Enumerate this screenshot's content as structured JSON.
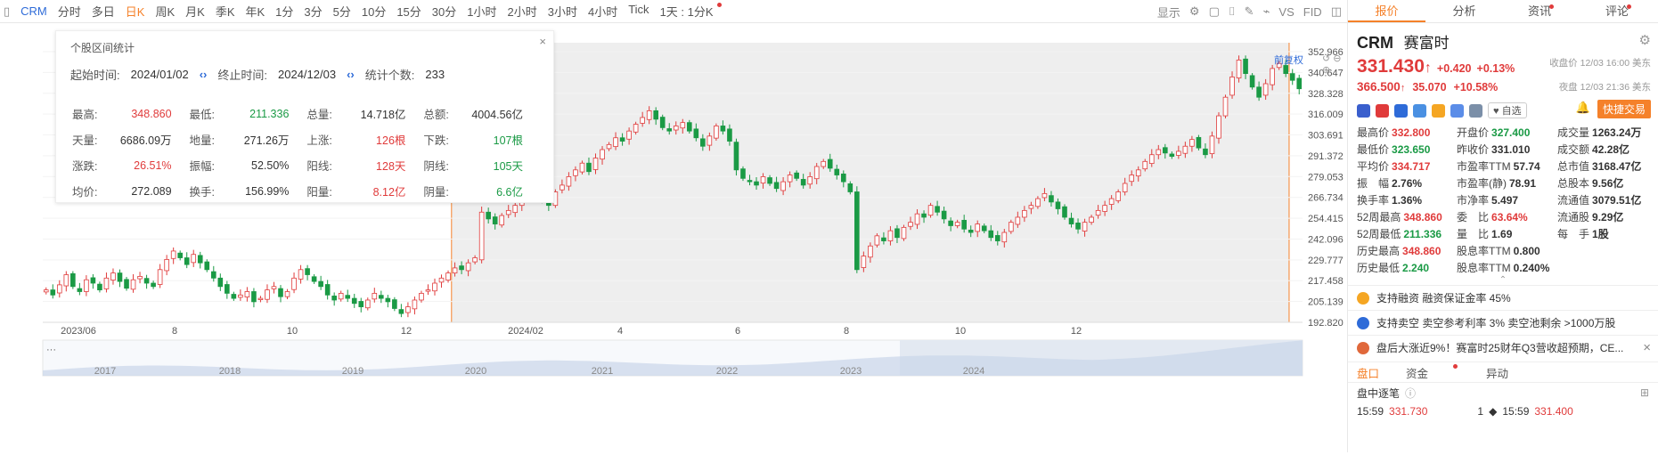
{
  "toolbar": {
    "symbol": "CRM",
    "periods": [
      "分时",
      "多日",
      "日K",
      "周K",
      "月K",
      "季K",
      "年K",
      "1分",
      "3分",
      "5分",
      "10分",
      "15分",
      "30分",
      "1小时",
      "2小时",
      "3小时",
      "4小时",
      "Tick",
      "1天 : 1分K"
    ],
    "active_period": "日K",
    "right_items": [
      "显示",
      "VS",
      "FID"
    ]
  },
  "overlay": {
    "restore_label": "前复权"
  },
  "stats_popup": {
    "title": "个股区间统计",
    "start_label": "起始时间:",
    "start_value": "2024/01/02",
    "end_label": "终止时间:",
    "end_value": "2024/12/03",
    "count_label": "统计个数:",
    "count_value": "233",
    "rows": [
      [
        {
          "l": "最高:",
          "v": "348.860",
          "c": "red"
        },
        {
          "l": "最低:",
          "v": "211.336",
          "c": "green"
        },
        {
          "l": "总量:",
          "v": "14.718亿",
          "c": "blk"
        },
        {
          "l": "总额:",
          "v": "4004.56亿",
          "c": "blk"
        }
      ],
      [
        {
          "l": "天量:",
          "v": "6686.09万",
          "c": "blk"
        },
        {
          "l": "地量:",
          "v": "271.26万",
          "c": "blk"
        },
        {
          "l": "上涨:",
          "v": "126根",
          "c": "red"
        },
        {
          "l": "下跌:",
          "v": "107根",
          "c": "green"
        }
      ],
      [
        {
          "l": "涨跌:",
          "v": "26.51%",
          "c": "red"
        },
        {
          "l": "振幅:",
          "v": "52.50%",
          "c": "blk"
        },
        {
          "l": "阳线:",
          "v": "128天",
          "c": "red"
        },
        {
          "l": "阴线:",
          "v": "105天",
          "c": "green"
        }
      ],
      [
        {
          "l": "均价:",
          "v": "272.089",
          "c": "blk"
        },
        {
          "l": "换手:",
          "v": "156.99%",
          "c": "blk"
        },
        {
          "l": "阳量:",
          "v": "8.12亿",
          "c": "red"
        },
        {
          "l": "阴量:",
          "v": "6.6亿",
          "c": "green"
        }
      ]
    ]
  },
  "chart_data": {
    "type": "candlestick",
    "y_ticks": [
      "352.966",
      "340.647",
      "328.328",
      "316.009",
      "303.691",
      "291.372",
      "279.053",
      "266.734",
      "254.415",
      "242.096",
      "229.777",
      "217.458",
      "205.139",
      "192.820"
    ],
    "ylim": [
      192.82,
      352.966
    ],
    "x_ticks": [
      "2023/06",
      "8",
      "10",
      "12",
      "2024/02",
      "4",
      "6",
      "8",
      "10",
      "12"
    ],
    "overview_years": [
      "2017",
      "2018",
      "2019",
      "2020",
      "2021",
      "2022",
      "2023",
      "2024"
    ],
    "selected_range": [
      "2024/01/02",
      "2024/12/03"
    ],
    "closes": [
      212,
      209,
      215,
      221,
      214,
      211,
      218,
      216,
      212,
      219,
      222,
      217,
      213,
      218,
      220,
      216,
      214,
      224,
      230,
      235,
      231,
      227,
      233,
      228,
      224,
      219,
      214,
      210,
      207,
      209,
      211,
      205,
      207,
      212,
      214,
      208,
      211,
      219,
      224,
      221,
      217,
      214,
      209,
      206,
      210,
      207,
      204,
      202,
      206,
      210,
      207,
      205,
      201,
      198,
      202,
      206,
      210,
      212,
      216,
      219,
      222,
      225,
      224,
      228,
      231,
      258,
      254,
      251,
      256,
      259,
      262,
      265,
      268,
      270,
      266,
      262,
      270,
      274,
      279,
      283,
      287,
      282,
      290,
      295,
      298,
      302,
      300,
      306,
      310,
      314,
      318,
      313,
      308,
      306,
      309,
      311,
      306,
      302,
      297,
      303,
      309,
      306,
      300,
      283,
      278,
      276,
      274,
      279,
      275,
      272,
      276,
      280,
      278,
      274,
      279,
      285,
      288,
      284,
      280,
      276,
      270,
      224,
      232,
      238,
      244,
      241,
      247,
      243,
      249,
      252,
      257,
      255,
      262,
      258,
      254,
      250,
      252,
      248,
      246,
      251,
      247,
      243,
      241,
      246,
      252,
      255,
      259,
      262,
      266,
      269,
      264,
      260,
      255,
      251,
      248,
      252,
      255,
      259,
      262,
      266,
      270,
      275,
      280,
      283,
      288,
      292,
      295,
      293,
      291,
      294,
      297,
      301,
      296,
      292,
      303,
      315,
      326,
      338,
      348,
      340,
      332,
      326,
      334,
      343,
      346,
      340,
      336,
      331
    ]
  },
  "quote": {
    "tabs": [
      "报价",
      "分析",
      "资讯",
      "评论"
    ],
    "active_tab": "报价",
    "code": "CRM",
    "name": "赛富时",
    "price": "331.430",
    "arrow": "↑",
    "change": "+0.420",
    "change_pct": "+0.13%",
    "close_time": "收盘价 12/03 16:00 美东",
    "ah_price": "366.500",
    "ah_change": "35.070",
    "ah_change_pct": "+10.58%",
    "ah_time": "夜盘 12/03 21:36 美东",
    "fav_label": "♥ 自选",
    "trade_label": "快捷交易",
    "fields": [
      {
        "l": "最高价",
        "v": "332.800",
        "c": "red"
      },
      {
        "l": "开盘价",
        "v": "327.400",
        "c": "green"
      },
      {
        "l": "成交量",
        "v": "1263.24万",
        "c": "blk"
      },
      {
        "l": "最低价",
        "v": "323.650",
        "c": "green"
      },
      {
        "l": "昨收价",
        "v": "331.010",
        "c": "blk"
      },
      {
        "l": "成交额",
        "v": "42.28亿",
        "c": "blk"
      },
      {
        "l": "平均价",
        "v": "334.717",
        "c": "red"
      },
      {
        "l": "市盈率TTM",
        "v": "57.74",
        "c": "blk"
      },
      {
        "l": "总市值",
        "v": "3168.47亿",
        "c": "blk"
      },
      {
        "l": "振　幅",
        "v": "2.76%",
        "c": "blk"
      },
      {
        "l": "市盈率(静)",
        "v": "78.91",
        "c": "blk"
      },
      {
        "l": "总股本",
        "v": "9.56亿",
        "c": "blk"
      },
      {
        "l": "换手率",
        "v": "1.36%",
        "c": "blk"
      },
      {
        "l": "市净率",
        "v": "5.497",
        "c": "blk"
      },
      {
        "l": "流通值",
        "v": "3079.51亿",
        "c": "blk"
      },
      {
        "l": "52周最高",
        "v": "348.860",
        "c": "red"
      },
      {
        "l": "委　比",
        "v": "63.64%",
        "c": "red"
      },
      {
        "l": "流通股",
        "v": "9.29亿",
        "c": "blk"
      },
      {
        "l": "52周最低",
        "v": "211.336",
        "c": "green"
      },
      {
        "l": "量　比",
        "v": "1.69",
        "c": "blk"
      },
      {
        "l": "每　手",
        "v": "1股",
        "c": "blk"
      },
      {
        "l": "历史最高",
        "v": "348.860",
        "c": "red"
      },
      {
        "l": "股息率TTM",
        "v": "0.800",
        "c": "blk"
      },
      {
        "l": "",
        "v": "",
        "c": "blk"
      },
      {
        "l": "历史最低",
        "v": "2.240",
        "c": "green"
      },
      {
        "l": "股息率TTM",
        "v": "0.240%",
        "c": "blk"
      },
      {
        "l": "",
        "v": "",
        "c": "blk"
      }
    ],
    "notices": [
      {
        "text": "支持融资  融资保证金率 45%",
        "icon_color": "#f5a623"
      },
      {
        "text": "支持卖空  卖空参考利率 3%  卖空池剩余 >1000万股",
        "icon_color": "#2e6bd8"
      },
      {
        "text": "盘后大涨近9%！赛富时25财年Q3营收超预期，CE...",
        "icon_color": "#e0683b"
      }
    ],
    "subtabs": [
      "盘口",
      "资金",
      "异动"
    ],
    "speed_label": "盘中逐笔",
    "ticks": [
      {
        "time": "15:59",
        "price": "331.730"
      },
      {
        "time": "15:59",
        "price": "331.400"
      }
    ],
    "tick_qty": "1"
  }
}
